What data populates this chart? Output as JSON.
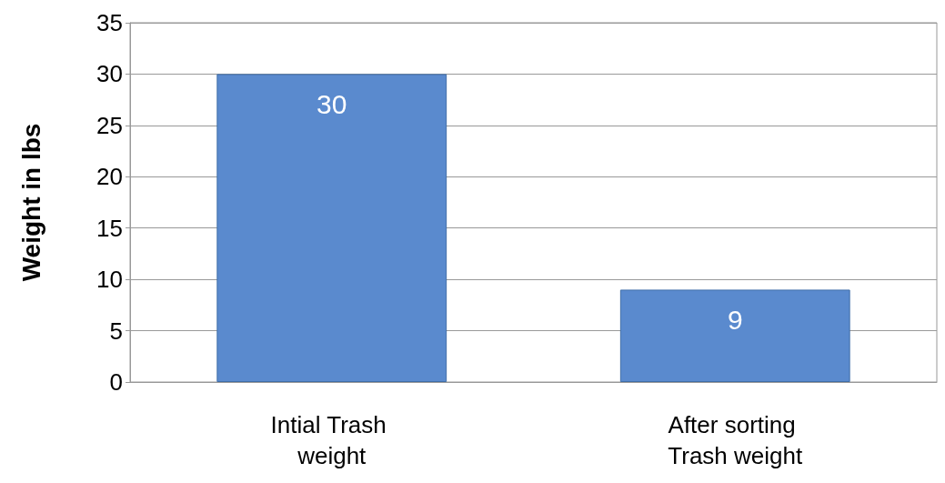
{
  "chart_data": {
    "type": "bar",
    "ylabel": "Weight in lbs",
    "categories": [
      "Intial Trash weight",
      "After sorting Trash weight"
    ],
    "values": [
      30,
      9
    ],
    "color": "#5a8ace",
    "ylim": [
      0,
      35
    ],
    "yticks": [
      0,
      5,
      10,
      15,
      20,
      25,
      30,
      35
    ],
    "grid": "y",
    "data_labels": true
  }
}
